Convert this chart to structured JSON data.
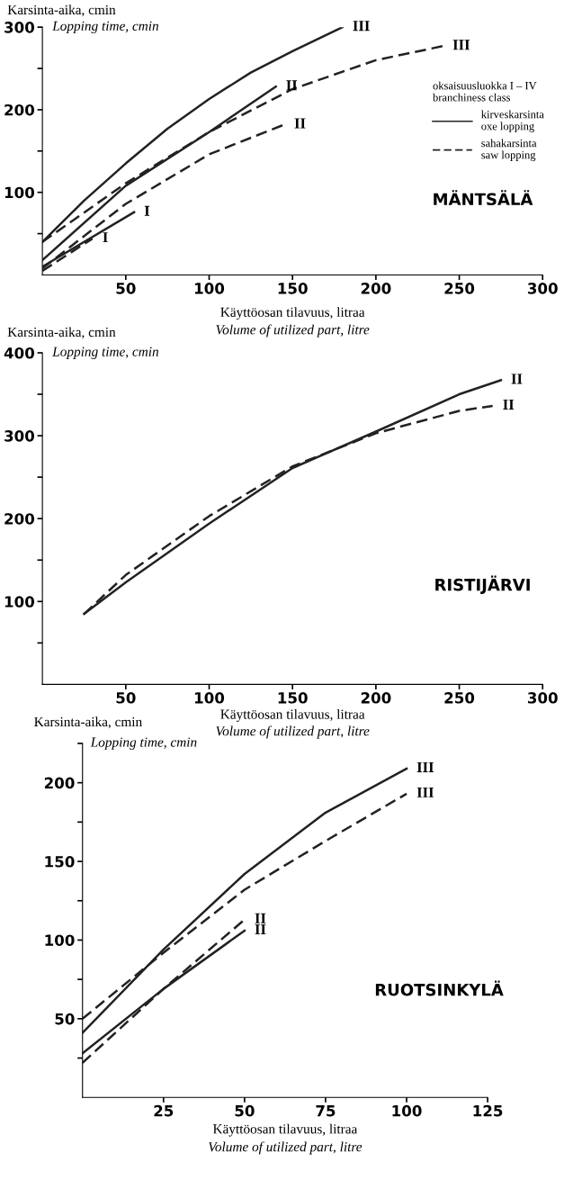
{
  "chart_data": [
    {
      "type": "line",
      "title": "MÄNTSÄLÄ",
      "xlabel": "Käyttöosan tilavuus, litraa\nVolume of utilized part, litre",
      "ylabel": "Karsinta-aika, cmin\nLopping time, cmin",
      "legend_title": "oksaisuusluokka I – IV\nbranchiness class",
      "legend": "right",
      "grid": false,
      "xlim": [
        0,
        300
      ],
      "xticks": [
        50,
        100,
        150,
        200,
        250,
        300
      ],
      "ylim": [
        0,
        300
      ],
      "yticks": [
        {
          "value": 50,
          "label": null
        },
        100,
        {
          "value": 150,
          "label": null
        },
        200,
        {
          "value": 250,
          "label": null
        },
        300
      ],
      "series": [
        {
          "name": "kirveskarsinta\noxe lopping",
          "color": "#222222",
          "line_style": "solid",
          "x": [
            0,
            25,
            50,
            75,
            100,
            125,
            150,
            180
          ],
          "values": [
            40,
            90,
            135,
            177,
            213,
            245,
            271,
            300
          ]
        },
        {
          "name": "sahakarsinta\nsaw lopping",
          "color": "#222222",
          "line_style": "dashed",
          "x": [
            0,
            50,
            100,
            150,
            200,
            240
          ],
          "values": [
            40,
            111,
            173,
            225,
            260,
            277
          ]
        },
        {
          "color": "#222222",
          "line_style": "solid",
          "x": [
            0,
            50,
            100,
            140
          ],
          "values": [
            18,
            108,
            173,
            228
          ]
        },
        {
          "color": "#222222",
          "line_style": "dashed",
          "x": [
            0,
            50,
            100,
            145
          ],
          "values": [
            8,
            86,
            146,
            182
          ]
        },
        {
          "color": "#222222",
          "line_style": "solid",
          "x": [
            0,
            55
          ],
          "values": [
            10,
            76
          ]
        },
        {
          "color": "#222222",
          "line_style": "dashed",
          "x": [
            0,
            30
          ],
          "values": [
            5,
            44
          ]
        }
      ],
      "annotations": [
        {
          "text": "III",
          "x": 180,
          "y": 300
        },
        {
          "text": "III",
          "x": 240,
          "y": 277
        },
        {
          "text": "II",
          "x": 140,
          "y": 228
        },
        {
          "text": "II",
          "x": 145,
          "y": 182
        },
        {
          "text": "I",
          "x": 55,
          "y": 76
        },
        {
          "text": "I",
          "x": 30,
          "y": 44
        }
      ]
    },
    {
      "type": "line",
      "title": "RISTIJÄRVI",
      "xlabel": "Käyttöosan tilavuus, litraa\nVolume of utilized part, litre",
      "ylabel": "Karsinta-aika, cmin\nLopping time, cmin",
      "grid": false,
      "xlim": [
        0,
        300
      ],
      "xticks": [
        50,
        100,
        150,
        200,
        250,
        300
      ],
      "ylim": [
        0,
        400
      ],
      "yticks": [
        {
          "value": 50,
          "label": null
        },
        100,
        {
          "value": 150,
          "label": null
        },
        200,
        {
          "value": 250,
          "label": null
        },
        300,
        {
          "value": 350,
          "label": null
        },
        400
      ],
      "series": [
        {
          "color": "#222222",
          "line_style": "solid",
          "x": [
            25,
            50,
            100,
            150,
            200,
            250,
            275
          ],
          "values": [
            85,
            123,
            194,
            261,
            305,
            350,
            367
          ]
        },
        {
          "color": "#222222",
          "line_style": "dashed",
          "x": [
            25,
            50,
            100,
            150,
            200,
            250,
            270
          ],
          "values": [
            85,
            132,
            203,
            263,
            303,
            330,
            336
          ]
        }
      ],
      "annotations": [
        {
          "text": "II",
          "x": 275,
          "y": 367
        },
        {
          "text": "II",
          "x": 270,
          "y": 336
        }
      ]
    },
    {
      "type": "line",
      "title": "RUOTSINKYLÄ",
      "xlabel": "Käyttöosan tilavuus, litraa\nVolume of utilized part, litre",
      "ylabel": "Karsinta-aika, cmin\nLopping time, cmin",
      "grid": false,
      "xlim": [
        0,
        125
      ],
      "xticks": [
        25,
        50,
        75,
        100,
        125
      ],
      "ylim": [
        0,
        225
      ],
      "yticks": [
        {
          "value": 25,
          "label": null
        },
        50,
        {
          "value": 75,
          "label": null
        },
        100,
        {
          "value": 125,
          "label": null
        },
        150,
        {
          "value": 175,
          "label": null
        },
        200,
        {
          "value": 225,
          "label": null
        }
      ],
      "series": [
        {
          "color": "#222222",
          "line_style": "solid",
          "x": [
            0,
            25,
            50,
            75,
            100
          ],
          "values": [
            41,
            94,
            142,
            181,
            209
          ]
        },
        {
          "color": "#222222",
          "line_style": "dashed",
          "x": [
            0,
            25,
            50,
            75,
            100
          ],
          "values": [
            50,
            92,
            132,
            163,
            193
          ]
        },
        {
          "color": "#222222",
          "line_style": "solid",
          "x": [
            0,
            25,
            50
          ],
          "values": [
            28,
            69,
            106
          ]
        },
        {
          "color": "#222222",
          "line_style": "dashed",
          "x": [
            0,
            25,
            50
          ],
          "values": [
            22,
            69,
            113
          ]
        }
      ],
      "annotations": [
        {
          "text": "III",
          "x": 100,
          "y": 209
        },
        {
          "text": "III",
          "x": 100,
          "y": 193
        },
        {
          "text": "II",
          "x": 50,
          "y": 113
        },
        {
          "text": "II",
          "x": 50,
          "y": 106
        }
      ]
    }
  ]
}
